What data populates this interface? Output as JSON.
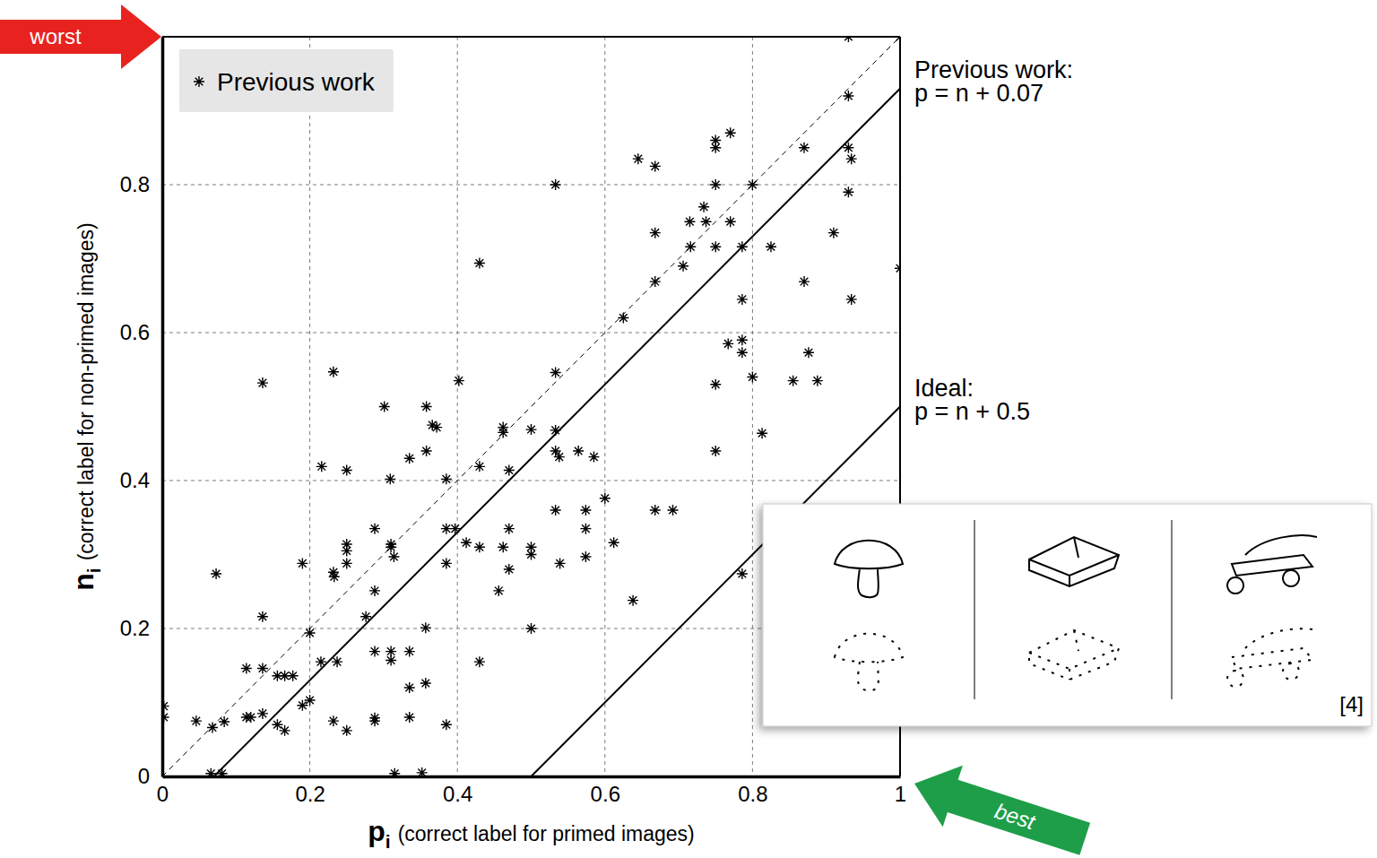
{
  "chart_data": {
    "type": "scatter",
    "xlabel": {
      "symbol": "p",
      "subscript": "i",
      "text": "(correct label for primed images)"
    },
    "ylabel": {
      "symbol": "n",
      "subscript": "i",
      "text": "(correct label for non-primed images)"
    },
    "xlim": [
      0,
      1
    ],
    "ylim": [
      0,
      1
    ],
    "xticks": [
      0,
      0.2,
      0.4,
      0.6,
      0.8,
      1
    ],
    "yticks": [
      0,
      0.2,
      0.4,
      0.6,
      0.8
    ],
    "grid": true,
    "legend": "upper left",
    "x": [
      0.93,
      1,
      0.93,
      0.75,
      0.77,
      0.75,
      0.93,
      0.934,
      0.87,
      0.645,
      0.668,
      0.533,
      0.75,
      0.8,
      0.93,
      0.734,
      0.715,
      0.737,
      0.77,
      0.668,
      0.91,
      0.716,
      0.75,
      0.786,
      0.825,
      0.706,
      0.43,
      0.668,
      0.87,
      0.786,
      0.934,
      0.625,
      1,
      0.767,
      0.786,
      0.786,
      0.876,
      0.8,
      0.855,
      0.888,
      0.75,
      0.813,
      0.75,
      0.668,
      0.692,
      0.6,
      0.612,
      0.638,
      0.786,
      0.136,
      0.232,
      0.301,
      0.358,
      0.366,
      0.372,
      0.402,
      0.533,
      0.533,
      0.462,
      0.462,
      0.5,
      0.216,
      0.25,
      0.335,
      0.358,
      0.309,
      0.385,
      0.43,
      0.47,
      0.533,
      0.538,
      0.564,
      0.585,
      0.397,
      0.385,
      0.412,
      0.43,
      0.462,
      0.47,
      0.5,
      0.5,
      0.533,
      0.574,
      0.574,
      0.539,
      0.574,
      0.47,
      0.385,
      0.456,
      0.43,
      0.5,
      0.357,
      0.25,
      0.25,
      0.25,
      0.232,
      0.233,
      0.19,
      0.288,
      0.31,
      0.31,
      0.314,
      0.276,
      0.288,
      0.288,
      0.31,
      0.335,
      0.31,
      0.357,
      0.335,
      0.288,
      0.288,
      0.335,
      0.385,
      0.315,
      0.352,
      0.215,
      0.237,
      0.2,
      0.2,
      0.19,
      0.232,
      0.25,
      0.136,
      0.136,
      0.114,
      0.156,
      0.166,
      0.177,
      0.114,
      0.12,
      0.136,
      0.156,
      0.166,
      0.073,
      0.046,
      0.068,
      0.084,
      0.066,
      0.081,
      0.002,
      0.002
    ],
    "series": [
      {
        "name": "Previous work",
        "color": "#000000",
        "marker": "asterisk",
        "values": [
          1,
          1,
          0.92,
          0.86,
          0.87,
          0.85,
          0.85,
          0.835,
          0.85,
          0.835,
          0.825,
          0.8,
          0.8,
          0.8,
          0.79,
          0.77,
          0.75,
          0.75,
          0.75,
          0.735,
          0.735,
          0.716,
          0.716,
          0.716,
          0.716,
          0.69,
          0.694,
          0.669,
          0.669,
          0.645,
          0.645,
          0.62,
          0.687,
          0.585,
          0.59,
          0.573,
          0.573,
          0.54,
          0.535,
          0.535,
          0.53,
          0.464,
          0.44,
          0.36,
          0.36,
          0.376,
          0.316,
          0.238,
          0.274,
          0.532,
          0.547,
          0.5,
          0.5,
          0.475,
          0.472,
          0.535,
          0.546,
          0.468,
          0.472,
          0.465,
          0.469,
          0.419,
          0.414,
          0.43,
          0.44,
          0.402,
          0.402,
          0.419,
          0.414,
          0.44,
          0.432,
          0.44,
          0.432,
          0.335,
          0.335,
          0.316,
          0.31,
          0.31,
          0.335,
          0.31,
          0.3,
          0.36,
          0.36,
          0.335,
          0.288,
          0.297,
          0.28,
          0.288,
          0.251,
          0.155,
          0.2,
          0.201,
          0.314,
          0.305,
          0.288,
          0.276,
          0.27,
          0.288,
          0.335,
          0.314,
          0.31,
          0.297,
          0.216,
          0.251,
          0.169,
          0.169,
          0.169,
          0.157,
          0.126,
          0.12,
          0.079,
          0.075,
          0.08,
          0.07,
          0.004,
          0.005,
          0.155,
          0.155,
          0.194,
          0.103,
          0.096,
          0.075,
          0.062,
          0.216,
          0.146,
          0.146,
          0.136,
          0.136,
          0.136,
          0.08,
          0.08,
          0.085,
          0.07,
          0.062,
          0.274,
          0.075,
          0.066,
          0.074,
          0.004,
          0.004,
          0.095,
          0.08
        ]
      }
    ],
    "reference_lines": [
      {
        "offset": 0,
        "line_style": "dashed",
        "color": "#000000"
      },
      {
        "offset": 0.07,
        "line_style": "solid",
        "color": "#000000",
        "name": "Previous work:",
        "equation": "p = n + 0.07"
      },
      {
        "offset": 0.5,
        "line_style": "solid",
        "color": "#000000",
        "name": "Ideal:",
        "equation": "p = n + 0.5"
      }
    ],
    "annotations": [
      {
        "text": "worst",
        "color": "#e8231f"
      },
      {
        "text": "best",
        "color": "#1e9e49"
      }
    ],
    "inset": {
      "citation": "[4]"
    }
  }
}
